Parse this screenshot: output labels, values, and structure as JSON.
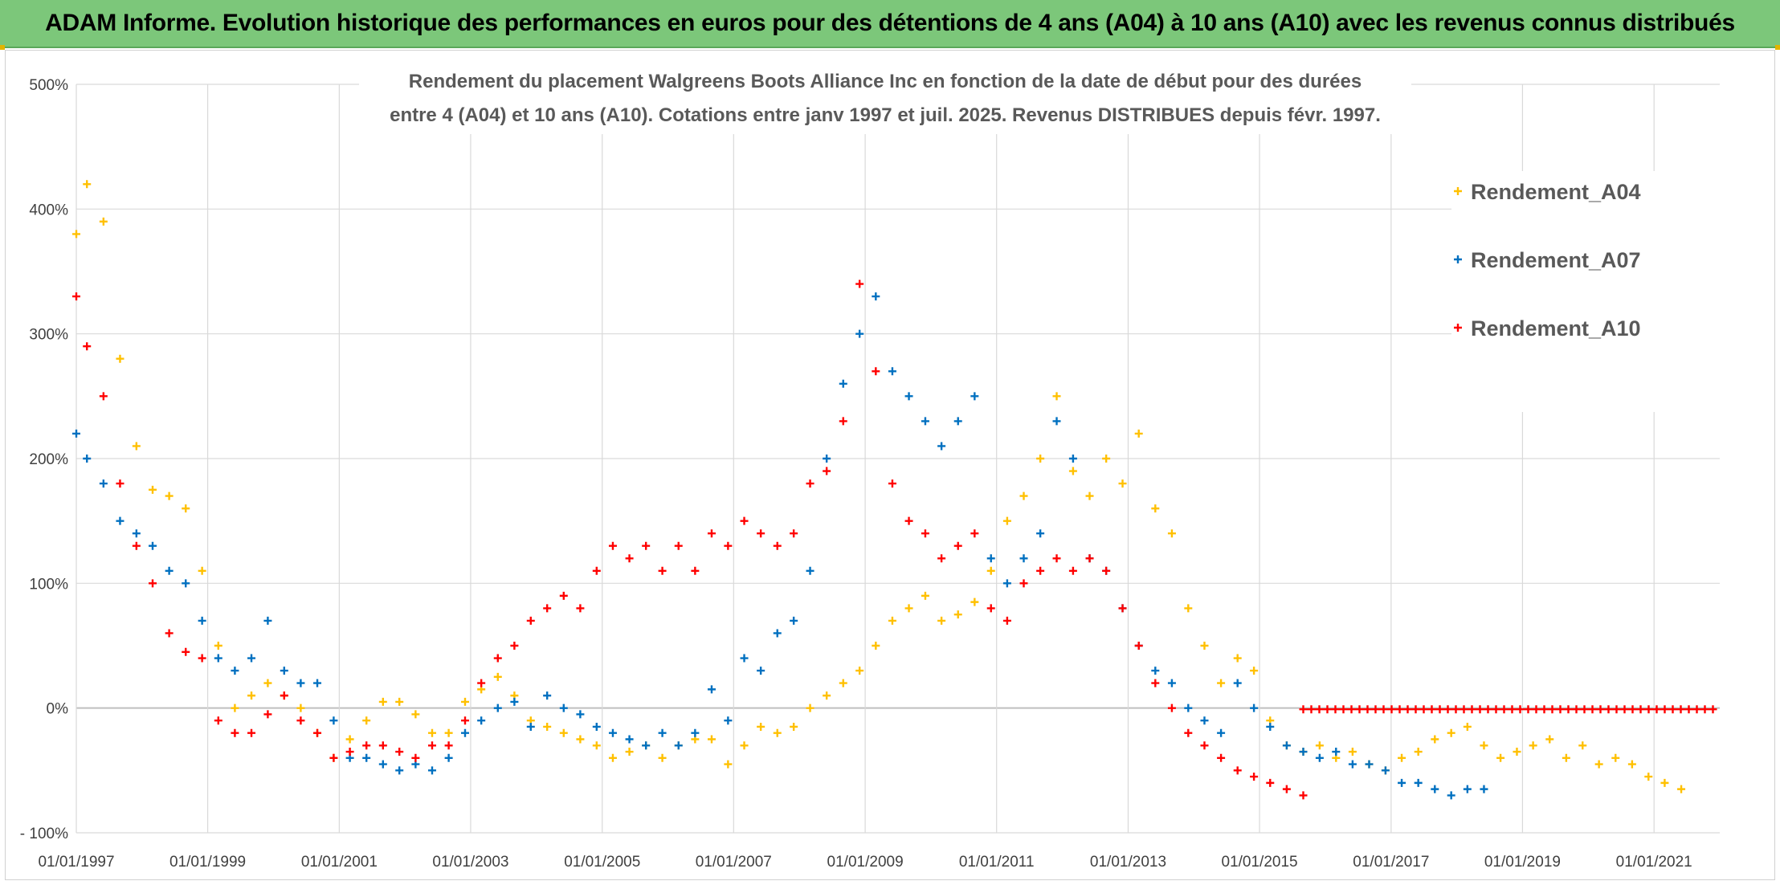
{
  "header": {
    "title": "ADAM Informe. Evolution historique des performances en euros pour des détentions de 4 ans (A04) à 10 ans (A10) avec les revenus connus distribués"
  },
  "colors": {
    "header_bg": "#7cc77a",
    "A04": "#ffc000",
    "A07": "#0070c0",
    "A10": "#ff0000"
  },
  "chart_data": {
    "type": "scatter",
    "title_lines": [
      "Rendement du placement Walgreens Boots Alliance Inc en fonction de la date de début pour des durées",
      "entre 4 (A04) et 10 ans (A10). Cotations entre janv 1997 et juil. 2025. Revenus DISTRIBUES depuis févr. 1997."
    ],
    "xlabel": "",
    "ylabel": "",
    "x_range": [
      "1997-01-01",
      "2022-01-01"
    ],
    "ylim": [
      -100,
      500
    ],
    "y_ticks": [
      {
        "value": 500,
        "label": "500%"
      },
      {
        "value": 400,
        "label": "400%"
      },
      {
        "value": 300,
        "label": "300%"
      },
      {
        "value": 200,
        "label": "200%"
      },
      {
        "value": 100,
        "label": "100%"
      },
      {
        "value": 0,
        "label": "0%"
      },
      {
        "value": -100,
        "label": "- 100%"
      }
    ],
    "x_ticks": [
      "01/01/1997",
      "01/01/1999",
      "01/01/2001",
      "01/01/2003",
      "01/01/2005",
      "01/01/2007",
      "01/01/2009",
      "01/01/2011",
      "01/01/2013",
      "01/01/2015",
      "01/01/2017",
      "01/01/2019",
      "01/01/2021"
    ],
    "grid": true,
    "legend_position": "top-right",
    "marker": "+",
    "series": [
      {
        "name": "Rendement_A04",
        "color": "#ffc000",
        "x": [
          "1997-01-01",
          "1997-03-01",
          "1997-06-01",
          "1997-09-01",
          "1997-12-01",
          "1998-03-01",
          "1998-06-01",
          "1998-09-01",
          "1998-12-01",
          "1999-03-01",
          "1999-06-01",
          "1999-09-01",
          "1999-12-01",
          "2000-03-01",
          "2000-06-01",
          "2000-09-01",
          "2000-12-01",
          "2001-03-01",
          "2001-06-01",
          "2001-09-01",
          "2001-12-01",
          "2002-03-01",
          "2002-06-01",
          "2002-09-01",
          "2002-12-01",
          "2003-03-01",
          "2003-06-01",
          "2003-09-01",
          "2003-12-01",
          "2004-03-01",
          "2004-06-01",
          "2004-09-01",
          "2004-12-01",
          "2005-03-01",
          "2005-06-01",
          "2005-09-01",
          "2005-12-01",
          "2006-03-01",
          "2006-06-01",
          "2006-09-01",
          "2006-12-01",
          "2007-03-01",
          "2007-06-01",
          "2007-09-01",
          "2007-12-01",
          "2008-03-01",
          "2008-06-01",
          "2008-09-01",
          "2008-12-01",
          "2009-03-01",
          "2009-06-01",
          "2009-09-01",
          "2009-12-01",
          "2010-03-01",
          "2010-06-01",
          "2010-09-01",
          "2010-12-01",
          "2011-03-01",
          "2011-06-01",
          "2011-09-01",
          "2011-12-01",
          "2012-03-01",
          "2012-06-01",
          "2012-09-01",
          "2012-12-01",
          "2013-03-01",
          "2013-06-01",
          "2013-09-01",
          "2013-12-01",
          "2014-03-01",
          "2014-06-01",
          "2014-09-01",
          "2014-12-01",
          "2015-03-01",
          "2015-06-01",
          "2015-09-01",
          "2015-12-01",
          "2016-03-01",
          "2016-06-01",
          "2016-09-01",
          "2016-12-01",
          "2017-03-01",
          "2017-06-01",
          "2017-09-01",
          "2017-12-01",
          "2018-03-01",
          "2018-06-01",
          "2018-09-01",
          "2018-12-01",
          "2019-03-01",
          "2019-06-01",
          "2019-09-01",
          "2019-12-01",
          "2020-03-01",
          "2020-06-01",
          "2020-09-01",
          "2020-12-01",
          "2021-03-01",
          "2021-06-01"
        ],
        "y": [
          380,
          420,
          390,
          280,
          210,
          175,
          170,
          160,
          110,
          50,
          0,
          10,
          20,
          10,
          0,
          -20,
          -40,
          -25,
          -10,
          5,
          5,
          -5,
          -20,
          -20,
          5,
          15,
          25,
          10,
          -10,
          -15,
          -20,
          -25,
          -30,
          -40,
          -35,
          -30,
          -40,
          -30,
          -25,
          -25,
          -45,
          -30,
          -15,
          -20,
          -15,
          0,
          10,
          20,
          30,
          50,
          70,
          80,
          90,
          70,
          75,
          85,
          110,
          150,
          170,
          200,
          250,
          190,
          170,
          200,
          180,
          220,
          160,
          140,
          80,
          50,
          20,
          40,
          30,
          -10,
          -30,
          -35,
          -30,
          -40,
          -35,
          -45,
          -50,
          -40,
          -35,
          -25,
          -20,
          -15,
          -30,
          -40,
          -35,
          -30,
          -25,
          -40,
          -30,
          -45,
          -40,
          -45,
          -55,
          -60,
          -65
        ]
      },
      {
        "name": "Rendement_A07",
        "color": "#0070c0",
        "x": [
          "1997-01-01",
          "1997-03-01",
          "1997-06-01",
          "1997-09-01",
          "1997-12-01",
          "1998-03-01",
          "1998-06-01",
          "1998-09-01",
          "1998-12-01",
          "1999-03-01",
          "1999-06-01",
          "1999-09-01",
          "1999-12-01",
          "2000-03-01",
          "2000-06-01",
          "2000-09-01",
          "2000-12-01",
          "2001-03-01",
          "2001-06-01",
          "2001-09-01",
          "2001-12-01",
          "2002-03-01",
          "2002-06-01",
          "2002-09-01",
          "2002-12-01",
          "2003-03-01",
          "2003-06-01",
          "2003-09-01",
          "2003-12-01",
          "2004-03-01",
          "2004-06-01",
          "2004-09-01",
          "2004-12-01",
          "2005-03-01",
          "2005-06-01",
          "2005-09-01",
          "2005-12-01",
          "2006-03-01",
          "2006-06-01",
          "2006-09-01",
          "2006-12-01",
          "2007-03-01",
          "2007-06-01",
          "2007-09-01",
          "2007-12-01",
          "2008-03-01",
          "2008-06-01",
          "2008-09-01",
          "2008-12-01",
          "2009-03-01",
          "2009-06-01",
          "2009-09-01",
          "2009-12-01",
          "2010-03-01",
          "2010-06-01",
          "2010-09-01",
          "2010-12-01",
          "2011-03-01",
          "2011-06-01",
          "2011-09-01",
          "2011-12-01",
          "2012-03-01",
          "2012-06-01",
          "2012-09-01",
          "2012-12-01",
          "2013-03-01",
          "2013-06-01",
          "2013-09-01",
          "2013-12-01",
          "2014-03-01",
          "2014-06-01",
          "2014-09-01",
          "2014-12-01",
          "2015-03-01",
          "2015-06-01",
          "2015-09-01",
          "2015-12-01",
          "2016-03-01",
          "2016-06-01",
          "2016-09-01",
          "2016-12-01",
          "2017-03-01",
          "2017-06-01",
          "2017-09-01",
          "2017-12-01",
          "2018-03-01",
          "2018-06-01"
        ],
        "y": [
          220,
          200,
          180,
          150,
          140,
          130,
          110,
          100,
          70,
          40,
          30,
          40,
          70,
          30,
          20,
          20,
          -10,
          -40,
          -40,
          -45,
          -50,
          -45,
          -50,
          -40,
          -20,
          -10,
          0,
          5,
          -15,
          10,
          0,
          -5,
          -15,
          -20,
          -25,
          -30,
          -20,
          -30,
          -20,
          15,
          -10,
          40,
          30,
          60,
          70,
          110,
          200,
          260,
          300,
          330,
          270,
          250,
          230,
          210,
          230,
          250,
          120,
          100,
          120,
          140,
          230,
          200,
          120,
          110,
          80,
          50,
          30,
          20,
          0,
          -10,
          -20,
          20,
          0,
          -15,
          -30,
          -35,
          -40,
          -35,
          -45,
          -45,
          -50,
          -60,
          -60,
          -65,
          -70,
          -65,
          -65
        ]
      },
      {
        "name": "Rendement_A10",
        "color": "#ff0000",
        "x": [
          "1997-01-01",
          "1997-03-01",
          "1997-06-01",
          "1997-09-01",
          "1997-12-01",
          "1998-03-01",
          "1998-06-01",
          "1998-09-01",
          "1998-12-01",
          "1999-03-01",
          "1999-06-01",
          "1999-09-01",
          "1999-12-01",
          "2000-03-01",
          "2000-06-01",
          "2000-09-01",
          "2000-12-01",
          "2001-03-01",
          "2001-06-01",
          "2001-09-01",
          "2001-12-01",
          "2002-03-01",
          "2002-06-01",
          "2002-09-01",
          "2002-12-01",
          "2003-03-01",
          "2003-06-01",
          "2003-09-01",
          "2003-12-01",
          "2004-03-01",
          "2004-06-01",
          "2004-09-01",
          "2004-12-01",
          "2005-03-01",
          "2005-06-01",
          "2005-09-01",
          "2005-12-01",
          "2006-03-01",
          "2006-06-01",
          "2006-09-01",
          "2006-12-01",
          "2007-03-01",
          "2007-06-01",
          "2007-09-01",
          "2007-12-01",
          "2008-03-01",
          "2008-06-01",
          "2008-09-01",
          "2008-12-01",
          "2009-03-01",
          "2009-06-01",
          "2009-09-01",
          "2009-12-01",
          "2010-03-01",
          "2010-06-01",
          "2010-09-01",
          "2010-12-01",
          "2011-03-01",
          "2011-06-01",
          "2011-09-01",
          "2011-12-01",
          "2012-03-01",
          "2012-06-01",
          "2012-09-01",
          "2012-12-01",
          "2013-03-01",
          "2013-06-01",
          "2013-09-01",
          "2013-12-01",
          "2014-03-01",
          "2014-06-01",
          "2014-09-01",
          "2014-12-01",
          "2015-03-01",
          "2015-06-01",
          "2015-09-01"
        ],
        "y": [
          330,
          290,
          250,
          180,
          130,
          100,
          60,
          45,
          40,
          -10,
          -20,
          -20,
          -5,
          10,
          -10,
          -20,
          -40,
          -35,
          -30,
          -30,
          -35,
          -40,
          -30,
          -30,
          -10,
          20,
          40,
          50,
          70,
          80,
          90,
          80,
          110,
          130,
          120,
          130,
          110,
          130,
          110,
          140,
          130,
          150,
          140,
          130,
          140,
          180,
          190,
          230,
          340,
          270,
          180,
          150,
          140,
          120,
          130,
          140,
          80,
          70,
          100,
          110,
          120,
          110,
          120,
          110,
          80,
          50,
          20,
          0,
          -20,
          -30,
          -40,
          -50,
          -55,
          -60,
          -65,
          -70
        ]
      }
    ],
    "flat_series": {
      "series_name": "Rendement_A10",
      "x_start": "2015-09-01",
      "x_end": "2022-01-01",
      "y": -1
    }
  }
}
